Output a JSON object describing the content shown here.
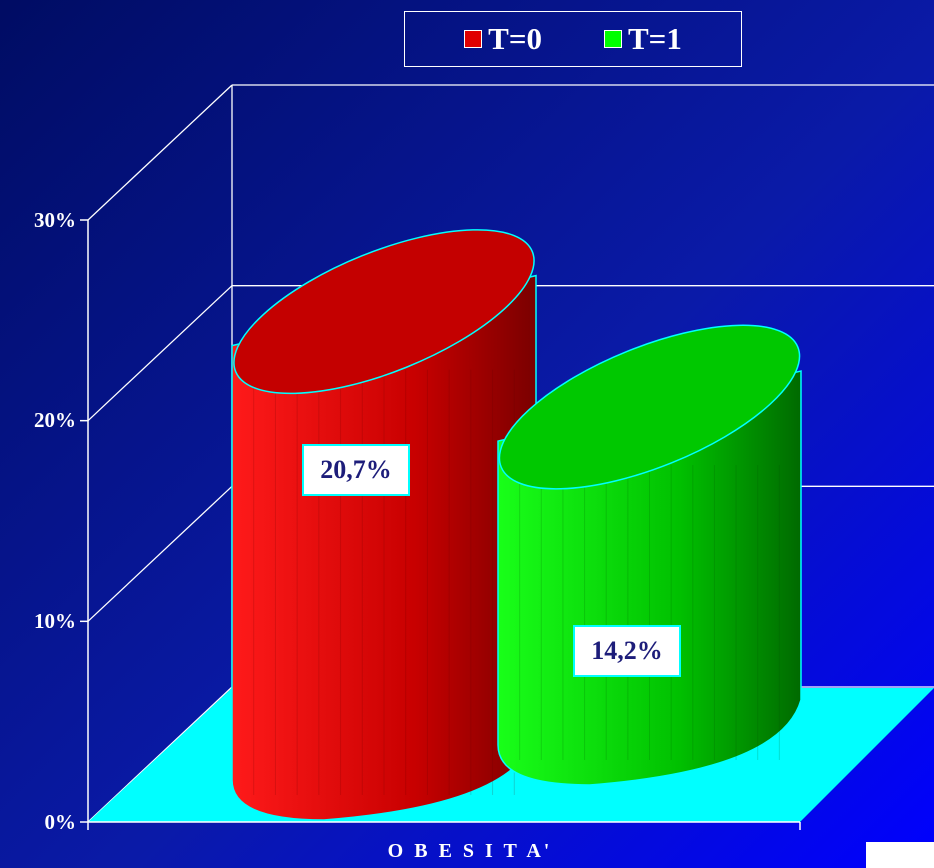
{
  "chart_data": {
    "type": "bar",
    "title": "",
    "categories": [
      "O B E S I T A'"
    ],
    "xlabel": "O B E S I T A'",
    "ylabel": "",
    "ylim": [
      0,
      30
    ],
    "yticks": [
      "0%",
      "10%",
      "20%",
      "30%"
    ],
    "grid": true,
    "legend_position": "top-center",
    "series": [
      {
        "name": "T=0",
        "values": [
          20.7
        ],
        "label": "20,7%",
        "color": "#e00000"
      },
      {
        "name": "T=1",
        "values": [
          14.2
        ],
        "label": "14,2%",
        "color": "#00dd00"
      }
    ]
  },
  "colors": {
    "background": "#000c63",
    "floor": "#00ffff",
    "grid": "#ffffff",
    "label_text": "#1d1d7a"
  }
}
